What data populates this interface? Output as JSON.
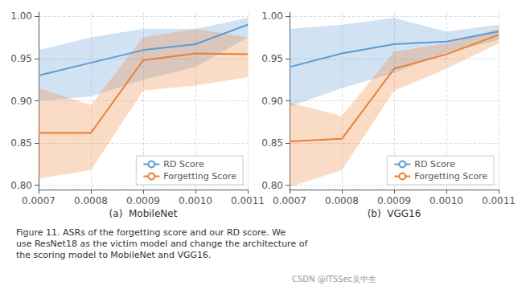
{
  "chart_data": [
    {
      "type": "line",
      "title": "(a)  MobileNet",
      "x": [
        0.0007,
        0.0008,
        0.0009,
        0.001,
        0.0011
      ],
      "xlim": [
        0.0007,
        0.0011
      ],
      "xticks": [
        0.0007,
        0.0008,
        0.0009,
        {
          "value": 0.001,
          "label": "0.0010"
        },
        0.0011
      ],
      "ylim": [
        0.795,
        1.005
      ],
      "yticks": [
        {
          "value": 0.8,
          "label": "0.80"
        },
        0.85,
        {
          "value": 0.9,
          "label": "0.90"
        },
        0.95,
        {
          "value": 1,
          "label": "1.00"
        }
      ],
      "grid": true,
      "legend": "lower right",
      "series": [
        {
          "name": "RD Score",
          "color": "#5b9bd5",
          "values": [
            0.93,
            0.945,
            0.96,
            0.967,
            0.99
          ],
          "lower": [
            0.9,
            0.905,
            0.925,
            0.94,
            0.975
          ],
          "upper": [
            0.96,
            0.975,
            0.985,
            0.985,
            0.998
          ]
        },
        {
          "name": "Forgetting Score",
          "color": "#ed7d31",
          "values": [
            0.862,
            0.862,
            0.948,
            0.956,
            0.955
          ],
          "lower": [
            0.808,
            0.818,
            0.912,
            0.918,
            0.928
          ],
          "upper": [
            0.915,
            0.895,
            0.975,
            0.985,
            0.975
          ]
        }
      ],
      "annotations": [
        "Figure 11. ASRs of the forgetting score and our RD score. We\nuse ResNet18 as the victim model and change the architecture of\nthe scoring model to MobileNet and VGG16.",
        "CSDN @ITSSec吴中生"
      ]
    },
    {
      "type": "line",
      "title": "(b)  VGG16",
      "x": [
        0.0007,
        0.0008,
        0.0009,
        0.001,
        0.0011
      ],
      "xlim": [
        0.0007,
        0.0011
      ],
      "xticks": [
        0.0007,
        0.0008,
        0.0009,
        {
          "value": 0.001,
          "label": "0.0010"
        },
        0.0011
      ],
      "ylim": [
        0.795,
        1.005
      ],
      "yticks": [
        {
          "value": 0.8,
          "label": "0.80"
        },
        0.85,
        {
          "value": 0.9,
          "label": "0.90"
        },
        0.95,
        {
          "value": 1,
          "label": "1.00"
        }
      ],
      "grid": true,
      "legend": "lower right",
      "series": [
        {
          "name": "RD Score",
          "color": "#5b9bd5",
          "values": [
            0.94,
            0.956,
            0.967,
            0.97,
            0.982
          ],
          "lower": [
            0.893,
            0.915,
            0.933,
            0.957,
            0.972
          ],
          "upper": [
            0.985,
            0.99,
            0.998,
            0.982,
            0.99
          ]
        },
        {
          "name": "Forgetting Score",
          "color": "#ed7d31",
          "values": [
            0.852,
            0.855,
            0.938,
            0.955,
            0.978
          ],
          "lower": [
            0.798,
            0.818,
            0.912,
            0.938,
            0.968
          ],
          "upper": [
            0.898,
            0.882,
            0.958,
            0.968,
            0.985
          ]
        }
      ]
    }
  ]
}
